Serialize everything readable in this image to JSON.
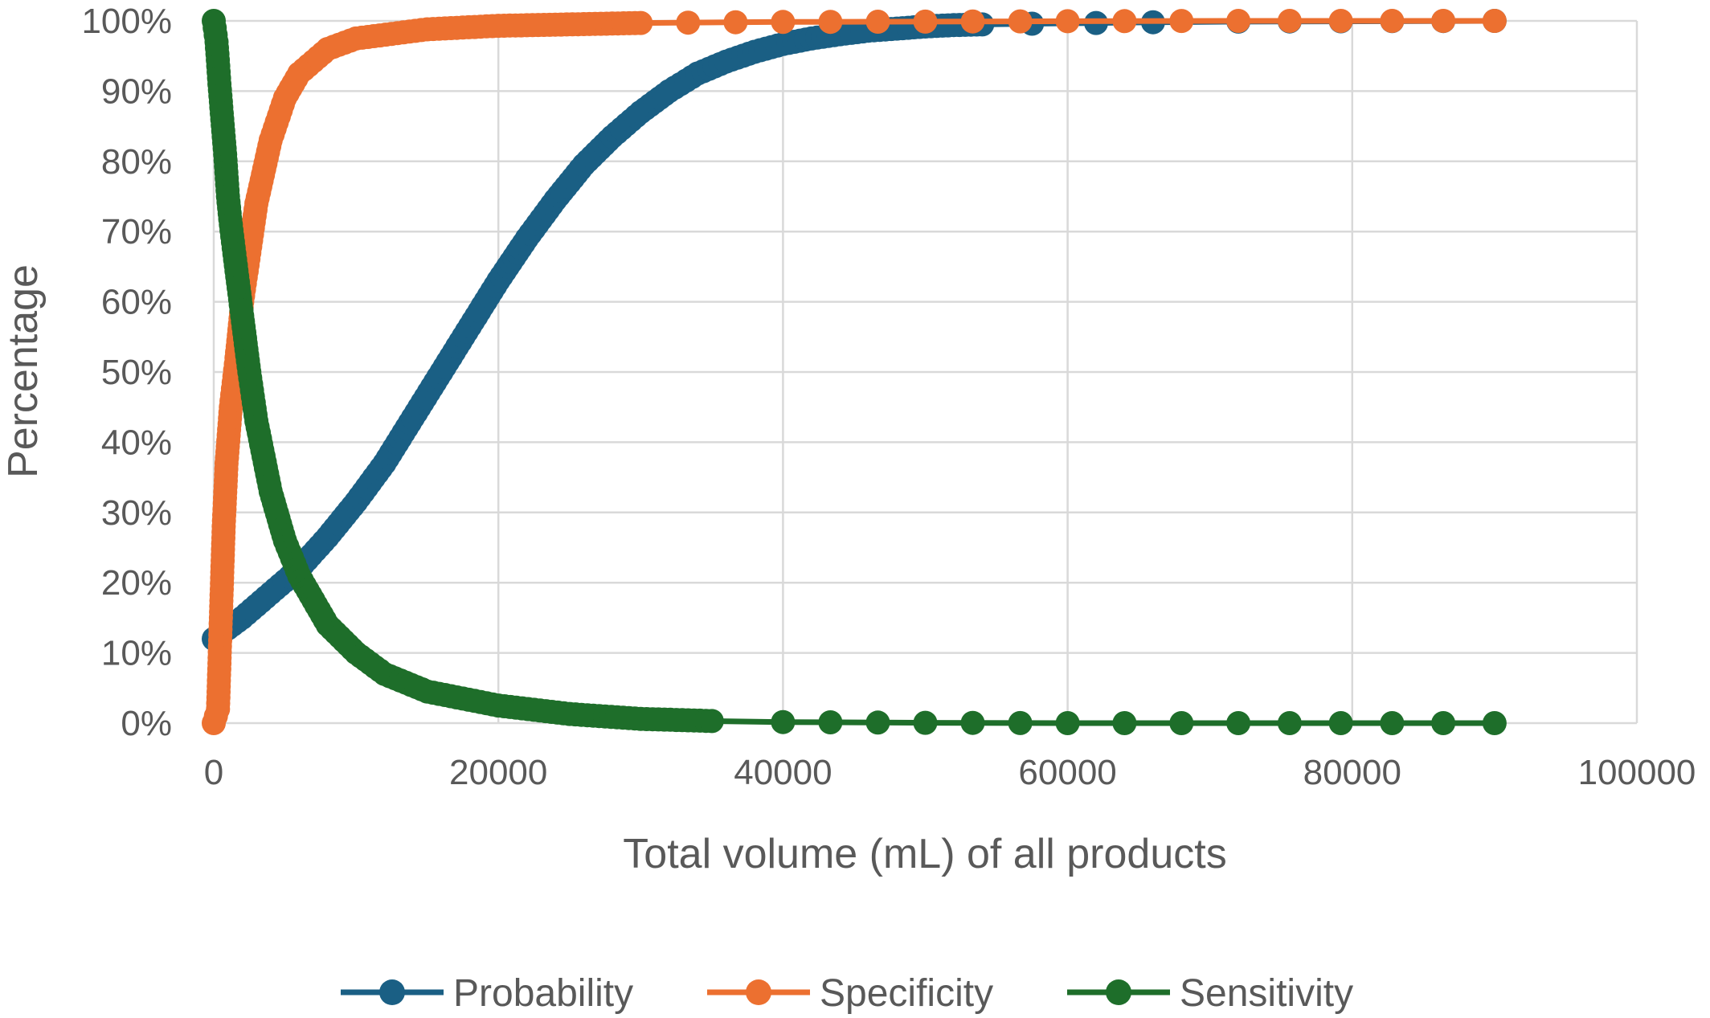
{
  "chart_data": {
    "type": "line",
    "title": "",
    "xlabel": "Total volume (mL) of all products",
    "ylabel": "Percentage",
    "xlim": [
      0,
      100000
    ],
    "ylim": [
      0,
      100
    ],
    "x_ticks": [
      0,
      20000,
      40000,
      60000,
      80000,
      100000
    ],
    "x_tick_labels": [
      "0",
      "20000",
      "40000",
      "60000",
      "80000",
      "100000"
    ],
    "y_ticks": [
      0,
      10,
      20,
      30,
      40,
      50,
      60,
      70,
      80,
      90,
      100
    ],
    "y_tick_labels": [
      "0%",
      "10%",
      "20%",
      "30%",
      "40%",
      "50%",
      "60%",
      "70%",
      "80%",
      "90%",
      "100%"
    ],
    "grid": true,
    "legend_position": "bottom",
    "series": [
      {
        "name": "Probability",
        "color": "#1a5f84",
        "x": [
          0,
          2000,
          4000,
          6000,
          8000,
          10000,
          12000,
          14000,
          16000,
          18000,
          20000,
          22000,
          24000,
          26000,
          28000,
          30000,
          32000,
          34000,
          36000,
          38000,
          40000,
          42000,
          44000,
          46000,
          48000,
          50000,
          52000,
          54000,
          57500,
          62000,
          66000,
          72000,
          90000
        ],
        "y": [
          12,
          15,
          18.5,
          22,
          26.5,
          31.5,
          37,
          43.5,
          50,
          56.5,
          63,
          69,
          74.5,
          79.5,
          83.5,
          87,
          90,
          92.5,
          94.2,
          95.6,
          96.7,
          97.5,
          98.1,
          98.6,
          98.9,
          99.2,
          99.4,
          99.5,
          99.6,
          99.7,
          99.8,
          99.9,
          100
        ]
      },
      {
        "name": "Specificity",
        "color": "#ec7030",
        "x": [
          0,
          300,
          500,
          700,
          900,
          1200,
          1600,
          2000,
          2500,
          3000,
          4000,
          5000,
          6000,
          8000,
          10000,
          15000,
          20000,
          30000,
          40000,
          50000,
          60000,
          72000,
          90000
        ],
        "y": [
          0,
          2,
          15,
          28,
          37,
          45,
          52,
          60,
          67,
          74,
          83,
          89,
          92.5,
          96,
          97.5,
          98.8,
          99.3,
          99.7,
          99.85,
          99.9,
          99.95,
          100,
          100
        ]
      },
      {
        "name": "Sensitivity",
        "color": "#1e6e2a",
        "x": [
          0,
          200,
          400,
          600,
          800,
          1000,
          1200,
          1500,
          2000,
          2500,
          3000,
          4000,
          5000,
          6000,
          8000,
          10000,
          12000,
          15000,
          20000,
          25000,
          30000,
          35000,
          40000,
          50000,
          60000,
          72000,
          90000
        ],
        "y": [
          100,
          97,
          91,
          86,
          81,
          75,
          71,
          66,
          58,
          50,
          43,
          33,
          26,
          21,
          14,
          10,
          7,
          4.5,
          2.5,
          1.3,
          0.6,
          0.3,
          0.15,
          0.05,
          0,
          0,
          0
        ]
      }
    ]
  }
}
